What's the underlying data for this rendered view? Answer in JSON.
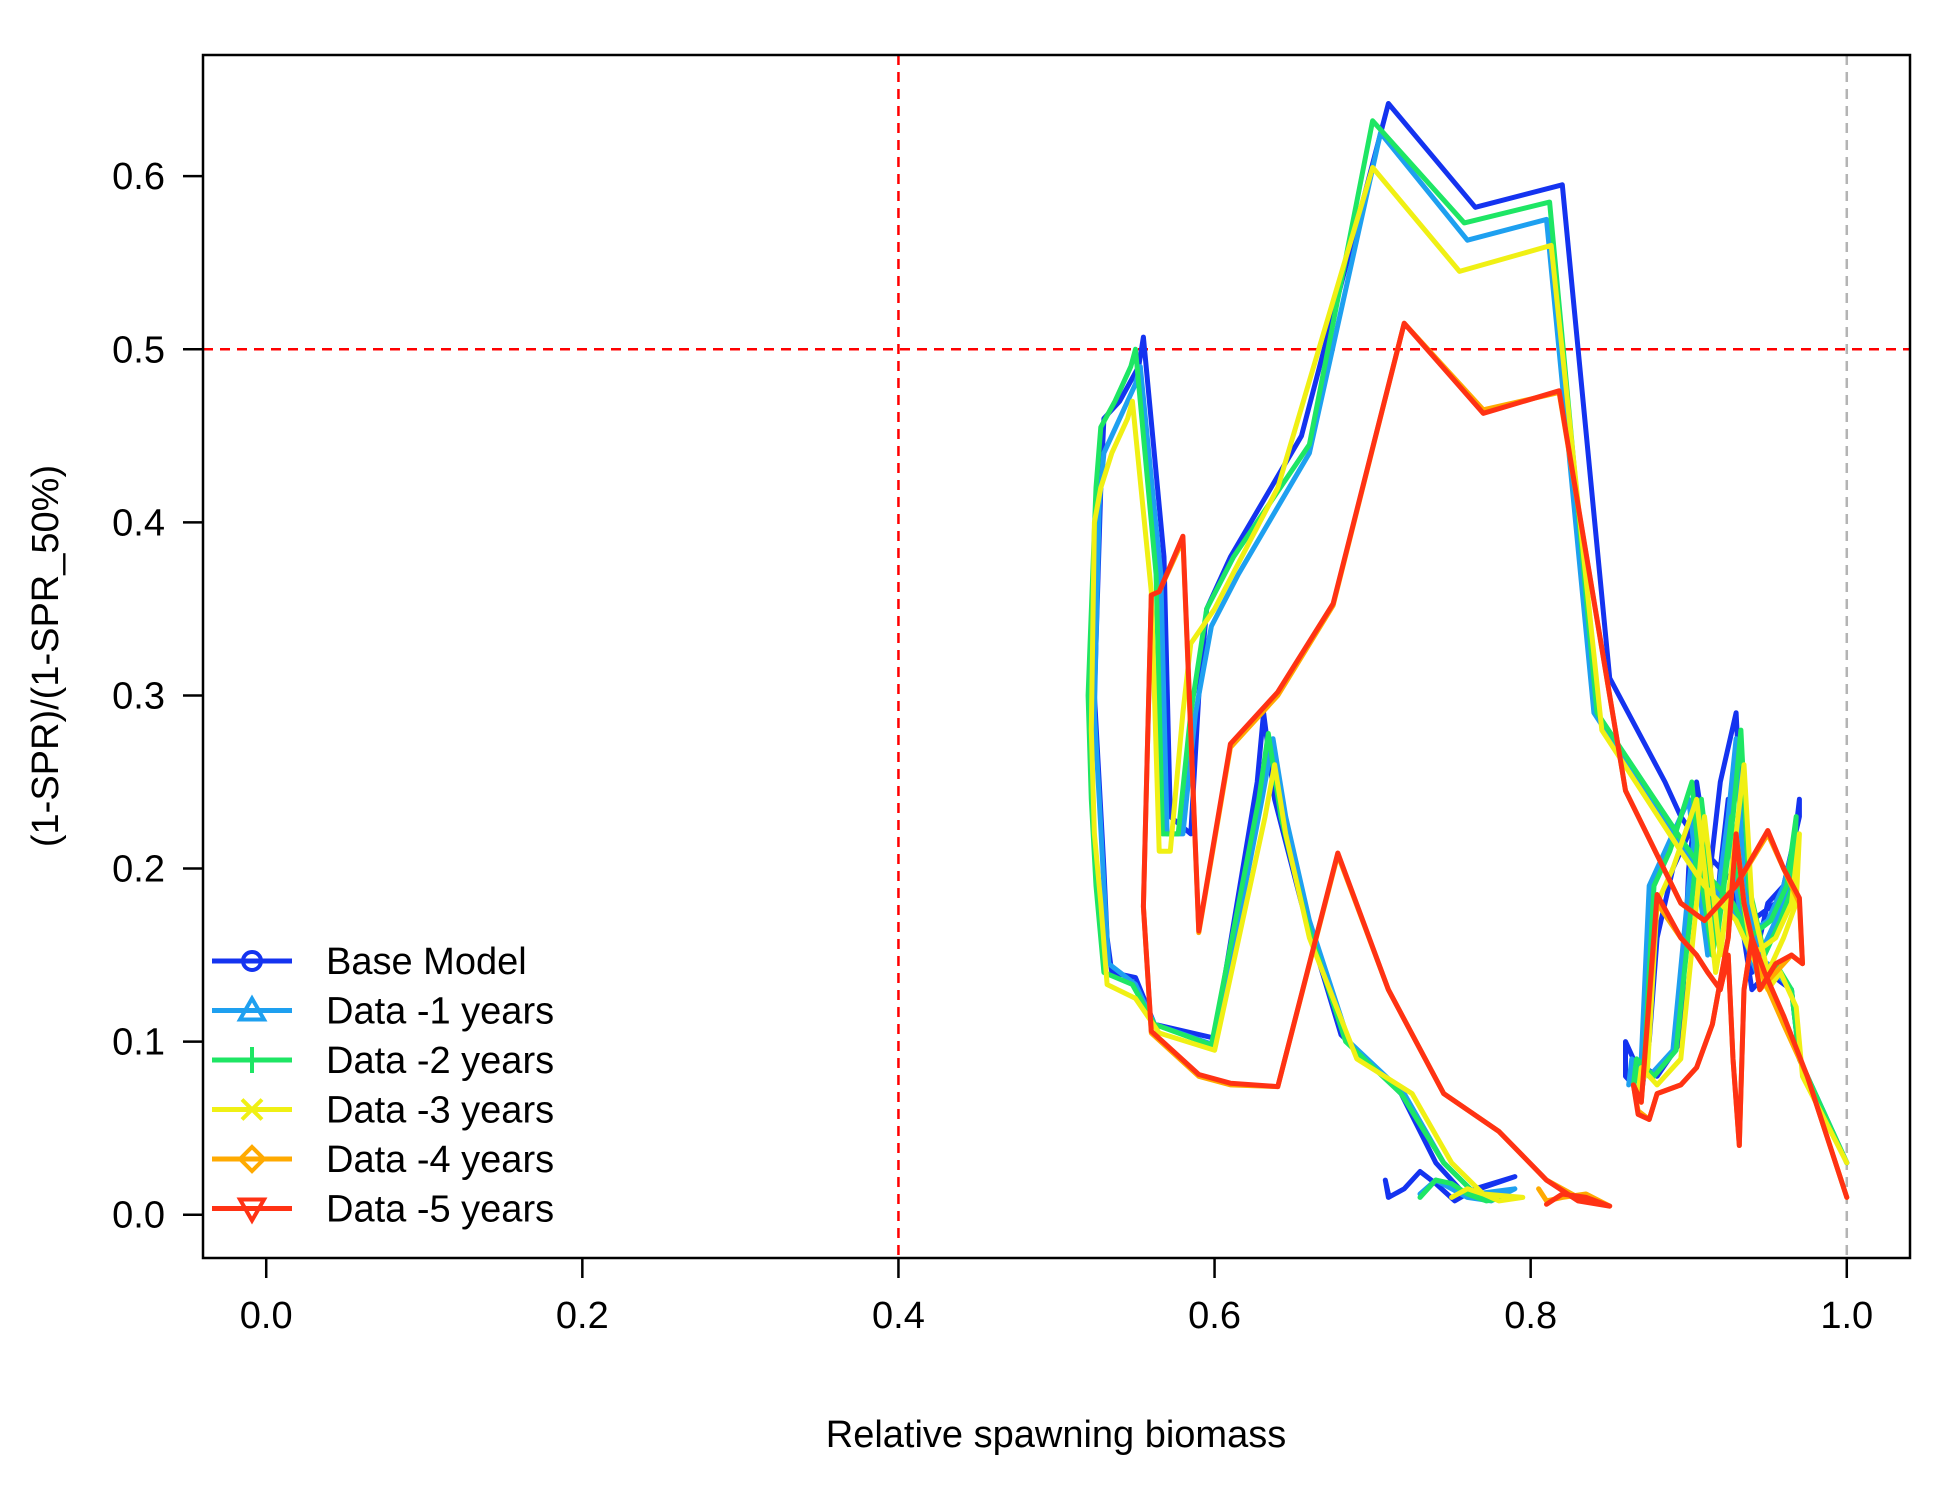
{
  "chart_data": {
    "type": "line",
    "title": "",
    "xlabel": "Relative spawning biomass",
    "ylabel": "(1-SPR)/(1-SPR_50%)",
    "xlim": [
      -0.04,
      1.04
    ],
    "ylim": [
      -0.025,
      0.67
    ],
    "x_ticks": [
      "0.0",
      "0.2",
      "0.4",
      "0.6",
      "0.8",
      "1.0"
    ],
    "y_ticks": [
      "0.0",
      "0.1",
      "0.2",
      "0.3",
      "0.4",
      "0.5",
      "0.6"
    ],
    "grid": false,
    "legend_position": "bottom-left",
    "reference_lines": [
      {
        "axis": "x",
        "value": 0.4,
        "color": "#ff0000",
        "style": "dashed"
      },
      {
        "axis": "y",
        "value": 0.5,
        "color": "#ff0000",
        "style": "dashed"
      },
      {
        "axis": "x",
        "value": 1.0,
        "color": "#b4b4b4",
        "style": "dashed"
      }
    ],
    "series": [
      {
        "name": "Base Model",
        "color": "#1433f0",
        "marker": "circle",
        "x": [
          1.0,
          0.97,
          0.965,
          0.95,
          0.94,
          0.935,
          0.93,
          0.925,
          0.92,
          0.915,
          0.91,
          0.905,
          0.9,
          0.89,
          0.88,
          0.875,
          0.87,
          0.86,
          0.86,
          0.865,
          0.88,
          0.895,
          0.9,
          0.905,
          0.91,
          0.92,
          0.93,
          0.935,
          0.94,
          0.95,
          0.96,
          0.97,
          0.97,
          0.965,
          0.955,
          0.94,
          0.93,
          0.91,
          0.895,
          0.885,
          0.85,
          0.82,
          0.765,
          0.71,
          0.655,
          0.61,
          0.595,
          0.59,
          0.585,
          0.572,
          0.568,
          0.555,
          0.552,
          0.54,
          0.53,
          0.528,
          0.524,
          0.527,
          0.53,
          0.532,
          0.535,
          0.55,
          0.562,
          0.6,
          0.627,
          0.631,
          0.638,
          0.655,
          0.68,
          0.718,
          0.74,
          0.758,
          0.79,
          0.765,
          0.752,
          0.74,
          0.73,
          0.72,
          0.71,
          0.708,
          0.71
        ],
        "y": [
          0.03,
          0.09,
          0.13,
          0.14,
          0.13,
          0.16,
          0.18,
          0.24,
          0.2,
          0.15,
          0.22,
          0.25,
          0.22,
          0.2,
          0.16,
          0.1,
          0.07,
          0.08,
          0.1,
          0.09,
          0.08,
          0.1,
          0.2,
          0.24,
          0.17,
          0.25,
          0.29,
          0.2,
          0.14,
          0.18,
          0.19,
          0.23,
          0.24,
          0.2,
          0.18,
          0.17,
          0.19,
          0.21,
          0.23,
          0.25,
          0.31,
          0.595,
          0.582,
          0.642,
          0.45,
          0.38,
          0.35,
          0.3,
          0.22,
          0.23,
          0.38,
          0.507,
          0.49,
          0.47,
          0.46,
          0.42,
          0.3,
          0.25,
          0.2,
          0.16,
          0.14,
          0.137,
          0.11,
          0.102,
          0.25,
          0.29,
          0.24,
          0.18,
          0.104,
          0.07,
          0.03,
          0.012,
          0.022,
          0.015,
          0.008,
          0.018,
          0.025,
          0.015,
          0.01,
          0.02,
          0.012
        ]
      },
      {
        "name": "Data -1 years",
        "color": "#1ea0f0",
        "marker": "triangle",
        "x": [
          1.0,
          0.97,
          0.965,
          0.95,
          0.945,
          0.935,
          0.93,
          0.925,
          0.92,
          0.912,
          0.905,
          0.9,
          0.885,
          0.875,
          0.87,
          0.862,
          0.864,
          0.875,
          0.89,
          0.9,
          0.905,
          0.915,
          0.925,
          0.93,
          0.935,
          0.945,
          0.955,
          0.965,
          0.968,
          0.96,
          0.95,
          0.935,
          0.925,
          0.905,
          0.89,
          0.84,
          0.81,
          0.76,
          0.705,
          0.66,
          0.615,
          0.598,
          0.588,
          0.58,
          0.57,
          0.566,
          0.553,
          0.55,
          0.54,
          0.53,
          0.527,
          0.524,
          0.527,
          0.53,
          0.533,
          0.55,
          0.562,
          0.6,
          0.63,
          0.637,
          0.645,
          0.66,
          0.685,
          0.72,
          0.745,
          0.765,
          0.79,
          0.775,
          0.76,
          0.75,
          0.74,
          0.73
        ],
        "y": [
          0.03,
          0.09,
          0.13,
          0.145,
          0.135,
          0.16,
          0.19,
          0.23,
          0.19,
          0.15,
          0.2,
          0.24,
          0.21,
          0.19,
          0.09,
          0.075,
          0.09,
          0.08,
          0.095,
          0.19,
          0.23,
          0.16,
          0.23,
          0.275,
          0.19,
          0.15,
          0.17,
          0.19,
          0.22,
          0.19,
          0.17,
          0.16,
          0.18,
          0.2,
          0.22,
          0.29,
          0.575,
          0.563,
          0.625,
          0.44,
          0.37,
          0.34,
          0.29,
          0.22,
          0.22,
          0.37,
          0.49,
          0.48,
          0.46,
          0.44,
          0.41,
          0.29,
          0.24,
          0.19,
          0.145,
          0.133,
          0.11,
          0.098,
          0.24,
          0.275,
          0.23,
          0.17,
          0.1,
          0.07,
          0.03,
          0.012,
          0.015,
          0.008,
          0.01,
          0.015,
          0.02,
          0.012
        ]
      },
      {
        "name": "Data -2 years",
        "color": "#1ee664",
        "marker": "plus",
        "x": [
          1.0,
          0.97,
          0.965,
          0.955,
          0.948,
          0.938,
          0.932,
          0.927,
          0.922,
          0.915,
          0.907,
          0.902,
          0.888,
          0.878,
          0.872,
          0.865,
          0.867,
          0.878,
          0.892,
          0.903,
          0.908,
          0.918,
          0.928,
          0.933,
          0.938,
          0.948,
          0.958,
          0.966,
          0.968,
          0.962,
          0.952,
          0.938,
          0.928,
          0.908,
          0.893,
          0.842,
          0.812,
          0.758,
          0.7,
          0.66,
          0.612,
          0.595,
          0.585,
          0.577,
          0.567,
          0.563,
          0.55,
          0.547,
          0.537,
          0.528,
          0.525,
          0.52,
          0.522,
          0.525,
          0.53,
          0.548,
          0.562,
          0.598,
          0.628,
          0.634,
          0.642,
          0.658,
          0.683,
          0.718,
          0.745,
          0.765,
          0.785,
          0.772,
          0.76,
          0.75,
          0.74,
          0.73
        ],
        "y": [
          0.03,
          0.09,
          0.13,
          0.145,
          0.135,
          0.16,
          0.19,
          0.23,
          0.19,
          0.15,
          0.2,
          0.25,
          0.21,
          0.19,
          0.09,
          0.075,
          0.09,
          0.08,
          0.095,
          0.19,
          0.24,
          0.16,
          0.23,
          0.28,
          0.19,
          0.15,
          0.17,
          0.19,
          0.23,
          0.19,
          0.17,
          0.16,
          0.18,
          0.2,
          0.22,
          0.29,
          0.585,
          0.573,
          0.632,
          0.445,
          0.38,
          0.35,
          0.29,
          0.22,
          0.22,
          0.37,
          0.5,
          0.49,
          0.47,
          0.455,
          0.42,
          0.3,
          0.24,
          0.19,
          0.14,
          0.133,
          0.11,
          0.098,
          0.24,
          0.278,
          0.23,
          0.17,
          0.1,
          0.07,
          0.03,
          0.012,
          0.01,
          0.008,
          0.012,
          0.018,
          0.02,
          0.01
        ]
      },
      {
        "name": "Data -3 years",
        "color": "#f0f014",
        "marker": "cross",
        "x": [
          1.0,
          0.972,
          0.968,
          0.958,
          0.95,
          0.94,
          0.935,
          0.93,
          0.925,
          0.917,
          0.91,
          0.905,
          0.89,
          0.88,
          0.874,
          0.868,
          0.87,
          0.88,
          0.895,
          0.905,
          0.91,
          0.92,
          0.93,
          0.935,
          0.94,
          0.95,
          0.96,
          0.968,
          0.97,
          0.965,
          0.955,
          0.94,
          0.93,
          0.91,
          0.895,
          0.845,
          0.813,
          0.755,
          0.7,
          0.64,
          0.6,
          0.585,
          0.58,
          0.572,
          0.565,
          0.56,
          0.548,
          0.545,
          0.535,
          0.528,
          0.524,
          0.522,
          0.524,
          0.528,
          0.532,
          0.55,
          0.565,
          0.6,
          0.632,
          0.638,
          0.645,
          0.66,
          0.69,
          0.725,
          0.75,
          0.77,
          0.795,
          0.78,
          0.77,
          0.76,
          0.75
        ],
        "y": [
          0.03,
          0.08,
          0.12,
          0.14,
          0.13,
          0.15,
          0.18,
          0.22,
          0.18,
          0.14,
          0.2,
          0.24,
          0.2,
          0.18,
          0.085,
          0.07,
          0.085,
          0.075,
          0.09,
          0.18,
          0.23,
          0.15,
          0.22,
          0.26,
          0.18,
          0.14,
          0.16,
          0.18,
          0.22,
          0.18,
          0.16,
          0.15,
          0.17,
          0.19,
          0.21,
          0.28,
          0.56,
          0.545,
          0.605,
          0.42,
          0.35,
          0.33,
          0.29,
          0.21,
          0.21,
          0.36,
          0.47,
          0.46,
          0.44,
          0.42,
          0.4,
          0.28,
          0.22,
          0.18,
          0.133,
          0.125,
          0.105,
          0.095,
          0.23,
          0.26,
          0.22,
          0.16,
          0.09,
          0.07,
          0.03,
          0.012,
          0.01,
          0.008,
          0.012,
          0.015,
          0.01
        ]
      },
      {
        "name": "Data -4 years",
        "color": "#ffaa00",
        "marker": "diamond",
        "x": [
          1.0,
          0.975,
          0.96,
          0.948,
          0.94,
          0.935,
          0.932,
          0.928,
          0.925,
          0.92,
          0.912,
          0.905,
          0.895,
          0.88,
          0.87,
          0.865,
          0.868,
          0.875,
          0.88,
          0.895,
          0.905,
          0.915,
          0.925,
          0.93,
          0.935,
          0.94,
          0.945,
          0.955,
          0.965,
          0.972,
          0.97,
          0.96,
          0.95,
          0.93,
          0.91,
          0.895,
          0.86,
          0.818,
          0.77,
          0.72,
          0.675,
          0.64,
          0.61,
          0.59,
          0.58,
          0.565,
          0.56,
          0.555,
          0.56,
          0.59,
          0.61,
          0.64,
          0.678,
          0.71,
          0.745,
          0.78,
          0.81,
          0.83,
          0.85,
          0.835,
          0.82,
          0.81,
          0.805
        ],
        "y": [
          0.01,
          0.08,
          0.11,
          0.135,
          0.16,
          0.13,
          0.04,
          0.09,
          0.15,
          0.13,
          0.14,
          0.15,
          0.16,
          0.18,
          0.065,
          0.075,
          0.06,
          0.055,
          0.07,
          0.075,
          0.085,
          0.11,
          0.16,
          0.22,
          0.18,
          0.16,
          0.13,
          0.14,
          0.15,
          0.145,
          0.18,
          0.2,
          0.22,
          0.19,
          0.17,
          0.18,
          0.245,
          0.475,
          0.465,
          0.515,
          0.352,
          0.3,
          0.27,
          0.163,
          0.39,
          0.36,
          0.358,
          0.178,
          0.105,
          0.08,
          0.075,
          0.074,
          0.208,
          0.13,
          0.07,
          0.048,
          0.02,
          0.01,
          0.005,
          0.012,
          0.01,
          0.008,
          0.015
        ]
      },
      {
        "name": "Data -5 years",
        "color": "#ff3214",
        "marker": "triangle-down",
        "x": [
          1.0,
          0.975,
          0.96,
          0.948,
          0.94,
          0.935,
          0.932,
          0.928,
          0.925,
          0.92,
          0.912,
          0.905,
          0.895,
          0.88,
          0.87,
          0.865,
          0.868,
          0.875,
          0.88,
          0.895,
          0.905,
          0.915,
          0.925,
          0.93,
          0.935,
          0.94,
          0.945,
          0.955,
          0.965,
          0.972,
          0.97,
          0.96,
          0.95,
          0.93,
          0.91,
          0.895,
          0.86,
          0.818,
          0.77,
          0.72,
          0.675,
          0.64,
          0.61,
          0.59,
          0.58,
          0.565,
          0.56,
          0.555,
          0.56,
          0.59,
          0.61,
          0.64,
          0.678,
          0.71,
          0.745,
          0.78,
          0.81,
          0.83,
          0.85,
          0.835,
          0.82,
          0.81
        ],
        "y": [
          0.01,
          0.08,
          0.115,
          0.14,
          0.16,
          0.13,
          0.04,
          0.09,
          0.15,
          0.13,
          0.14,
          0.15,
          0.16,
          0.185,
          0.065,
          0.075,
          0.058,
          0.055,
          0.07,
          0.075,
          0.085,
          0.11,
          0.16,
          0.22,
          0.18,
          0.16,
          0.13,
          0.145,
          0.15,
          0.145,
          0.183,
          0.2,
          0.222,
          0.19,
          0.17,
          0.18,
          0.245,
          0.476,
          0.463,
          0.515,
          0.353,
          0.302,
          0.272,
          0.164,
          0.392,
          0.36,
          0.358,
          0.178,
          0.106,
          0.081,
          0.076,
          0.074,
          0.209,
          0.13,
          0.07,
          0.048,
          0.02,
          0.008,
          0.005,
          0.01,
          0.012,
          0.006
        ]
      }
    ]
  }
}
